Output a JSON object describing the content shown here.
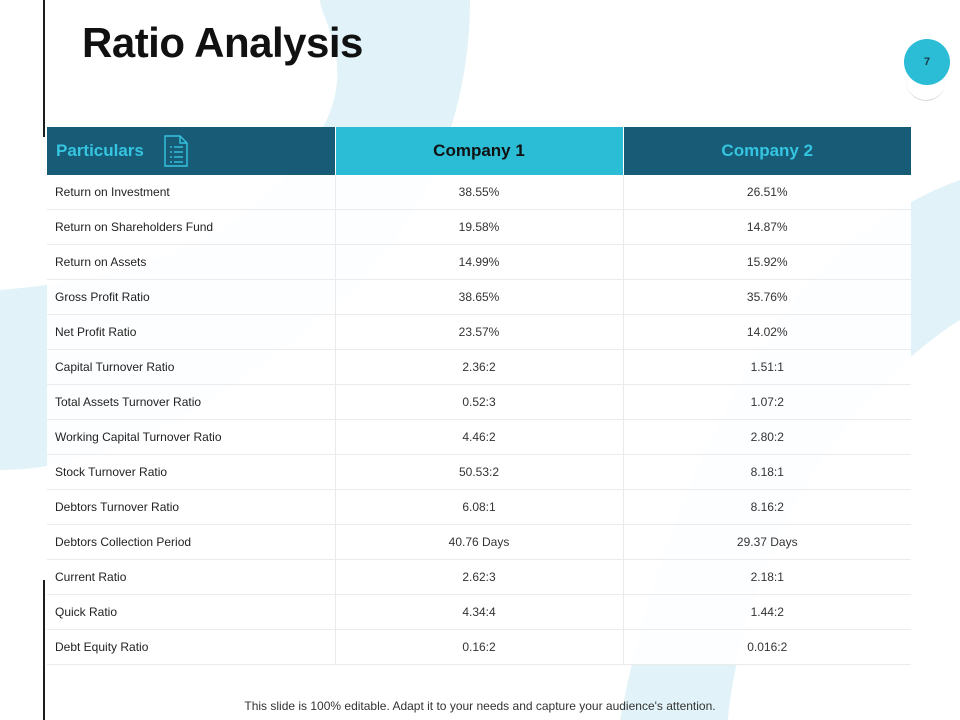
{
  "slide": {
    "title": "Ratio Analysis",
    "page_number": "7",
    "footer": "This slide is 100% editable. Adapt it to your needs and capture your audience's attention."
  },
  "colors": {
    "dark_teal": "#175b77",
    "cyan": "#2bbcd6",
    "light_background_shape": "#e1f3f8"
  },
  "table": {
    "header_icon": "document-list-icon",
    "headers": [
      "Particulars",
      "Company 1",
      "Company 2"
    ],
    "rows": [
      [
        "Return on Investment",
        "38.55%",
        "26.51%"
      ],
      [
        "Return on Shareholders Fund",
        "19.58%",
        "14.87%"
      ],
      [
        "Return on Assets",
        "14.99%",
        "15.92%"
      ],
      [
        "Gross Profit Ratio",
        "38.65%",
        "35.76%"
      ],
      [
        "Net Profit Ratio",
        "23.57%",
        "14.02%"
      ],
      [
        "Capital Turnover  Ratio",
        "2.36:2",
        "1.51:1"
      ],
      [
        "Total Assets Turnover  Ratio",
        "0.52:3",
        "1.07:2"
      ],
      [
        "Working Capital Turnover  Ratio",
        "4.46:2",
        "2.80:2"
      ],
      [
        "Stock Turnover  Ratio",
        "50.53:2",
        "8.18:1"
      ],
      [
        "Debtors Turnover  Ratio",
        "6.08:1",
        "8.16:2"
      ],
      [
        "Debtors Collection Period",
        "40.76 Days",
        "29.37 Days"
      ],
      [
        "Current Ratio",
        "2.62:3",
        "2.18:1"
      ],
      [
        "Quick Ratio",
        "4.34:4",
        "1.44:2"
      ],
      [
        "Debt Equity Ratio",
        "0.16:2",
        "0.016:2"
      ]
    ]
  }
}
